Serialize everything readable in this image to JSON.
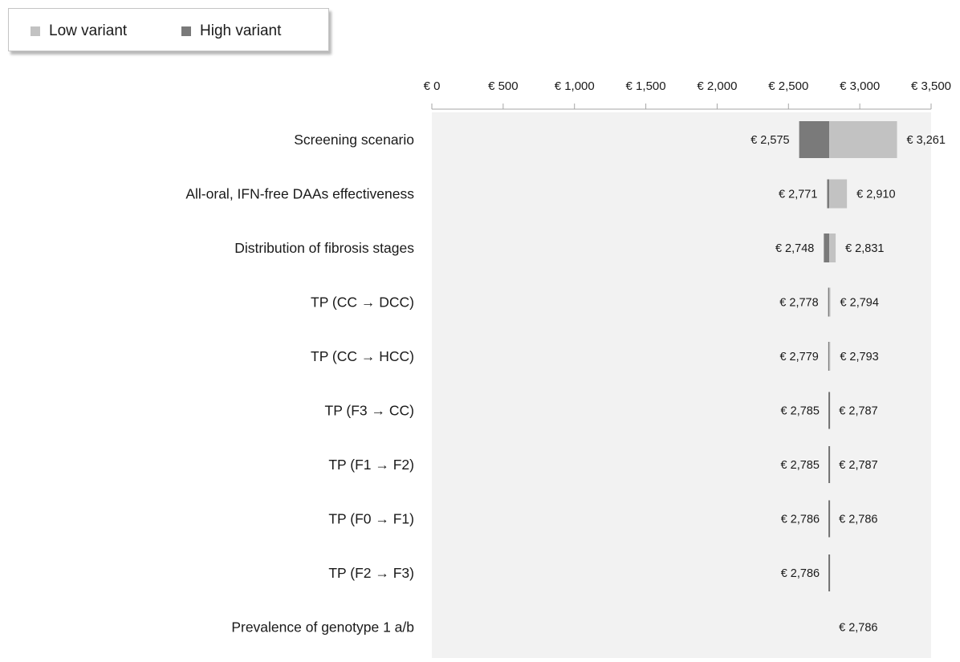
{
  "legend": {
    "low_label": "Low variant",
    "high_label": "High variant"
  },
  "colors": {
    "low_variant": "#c2c2c2",
    "high_variant": "#7a7a7a",
    "plot_background": "#f2f2f2",
    "axis_line": "#a6a6a6",
    "base_line": "#707070"
  },
  "chart_data": {
    "type": "bar",
    "subtype": "tornado",
    "base_value": 2786,
    "xlim": [
      0,
      3500
    ],
    "x_ticks": [
      0,
      500,
      1000,
      1500,
      2000,
      2500,
      3000,
      3500
    ],
    "x_tick_labels": [
      "€ 0",
      "€ 500",
      "€ 1,000",
      "€ 1,500",
      "€ 2,000",
      "€ 2,500",
      "€ 3,000",
      "€ 3,500"
    ],
    "legend_position": "top-left",
    "grid": false,
    "categories": [
      "Screening scenario",
      "All-oral, IFN-free DAAs effectiveness",
      "Distribution of fibrosis stages",
      "TP (CC → DCC)",
      "TP (CC → HCC)",
      "TP (F3 → CC)",
      "TP (F1 → F2)",
      "TP (F0 → F1)",
      "TP (F2 → F3)",
      "Prevalence of genotype 1 a/b"
    ],
    "rows": [
      {
        "left_value": 2575,
        "right_value": 3261,
        "left_label": "€ 2,575",
        "right_label": "€ 3,261",
        "low_variant": 3261,
        "high_variant": 2575
      },
      {
        "left_value": 2771,
        "right_value": 2910,
        "left_label": "€ 2,771",
        "right_label": "€ 2,910",
        "low_variant": 2910,
        "high_variant": 2771
      },
      {
        "left_value": 2748,
        "right_value": 2831,
        "left_label": "€ 2,748",
        "right_label": "€ 2,831",
        "low_variant": 2831,
        "high_variant": 2748
      },
      {
        "left_value": 2778,
        "right_value": 2794,
        "left_label": "€ 2,778",
        "right_label": "€ 2,794",
        "low_variant": 2794,
        "high_variant": 2778
      },
      {
        "left_value": 2779,
        "right_value": 2793,
        "left_label": "€ 2,779",
        "right_label": "€ 2,793",
        "low_variant": 2793,
        "high_variant": 2779
      },
      {
        "left_value": 2785,
        "right_value": 2787,
        "left_label": "€ 2,785",
        "right_label": "€ 2,787",
        "low_variant": 2787,
        "high_variant": 2785
      },
      {
        "left_value": 2785,
        "right_value": 2787,
        "left_label": "€ 2,785",
        "right_label": "€ 2,787",
        "low_variant": 2787,
        "high_variant": 2785
      },
      {
        "left_value": 2786,
        "right_value": 2786,
        "left_label": "€ 2,786",
        "right_label": "€ 2,786",
        "low_variant": 2786,
        "high_variant": 2786
      },
      {
        "left_value": 2786,
        "right_value": 2786,
        "left_label": "€ 2,786",
        "right_label": "",
        "low_variant": 2786,
        "high_variant": 2786
      },
      {
        "left_value": 2786,
        "right_value": 2786,
        "left_label": "",
        "right_label": "€ 2,786",
        "low_variant": 2786,
        "high_variant": 2786
      }
    ]
  }
}
